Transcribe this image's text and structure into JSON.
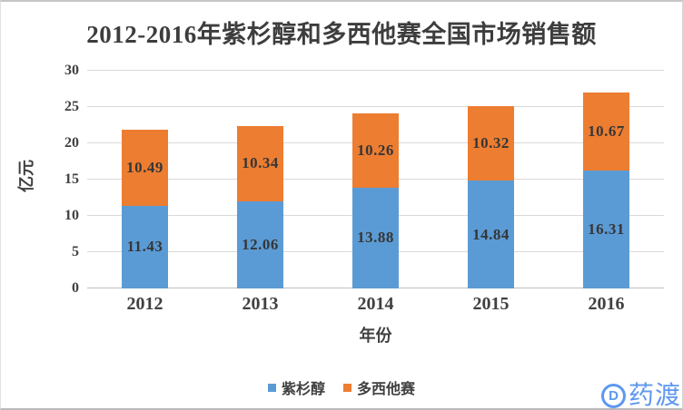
{
  "chart_data": {
    "type": "bar",
    "stacked": true,
    "title": "2012-2016年紫杉醇和多西他赛全国市场销售额",
    "xlabel": "年份",
    "ylabel": "亿元",
    "categories": [
      "2012",
      "2013",
      "2014",
      "2015",
      "2016"
    ],
    "series": [
      {
        "key": "paclitaxel",
        "name": "紫杉醇",
        "color": "#5B9BD5",
        "values": [
          11.43,
          12.06,
          13.88,
          14.84,
          16.31
        ]
      },
      {
        "key": "docetaxel",
        "name": "多西他赛",
        "color": "#ED7D31",
        "values": [
          10.49,
          10.34,
          10.26,
          10.32,
          10.67
        ]
      }
    ],
    "ylim": [
      0,
      30
    ],
    "yticks": [
      0,
      5,
      10,
      15,
      20,
      25,
      30
    ],
    "grid": "horizontal",
    "legend_position": "bottom",
    "value_label_decimals": 2
  },
  "colors": {
    "gridline": "#D9D9D9",
    "axis_line": "#BFBFBF",
    "tick_text": "#404040",
    "title_text": "#3D3D3D",
    "bar_label_text": "#363636",
    "watermark_blue": "#5E97F0",
    "frame_border": "#C6C6C6",
    "background": "#FFFFFF"
  },
  "watermark": {
    "icon": "pharmacodia-d-icon",
    "icon_letter": "D",
    "text": "药渡"
  }
}
